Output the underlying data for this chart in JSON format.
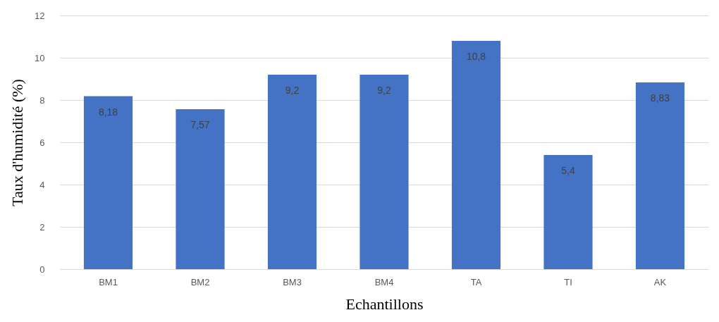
{
  "chart_data": {
    "type": "bar",
    "xlabel": "Echantillons",
    "ylabel": "Taux d'humidité (%)",
    "categories": [
      "BM1",
      "BM2",
      "BM3",
      "BM4",
      "TA",
      "TI",
      "AK"
    ],
    "values": [
      8.18,
      7.57,
      9.2,
      9.2,
      10.8,
      5.4,
      8.83
    ],
    "value_labels": [
      "8,18",
      "7,57",
      "9,2",
      "9,2",
      "10,8",
      "5,4",
      "8,83"
    ],
    "color": "#4472c4",
    "ylim": [
      0,
      12
    ],
    "yticks": [
      0,
      2,
      4,
      6,
      8,
      10,
      12
    ],
    "grid": "y"
  }
}
